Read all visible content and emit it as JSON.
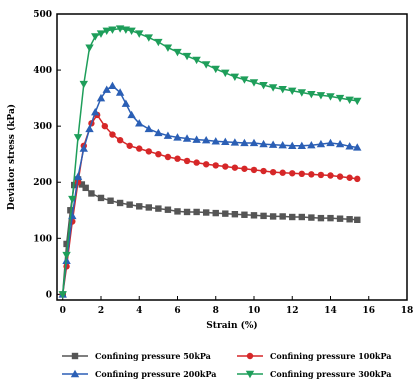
{
  "chart_data": {
    "type": "line",
    "xlabel": "Strain (%)",
    "ylabel": "Deviator stress (kPa)",
    "xlim": [
      -0.3,
      18
    ],
    "ylim": [
      -10,
      500
    ],
    "xticks": [
      "0",
      "2",
      "4",
      "6",
      "8",
      "10",
      "12",
      "14",
      "16",
      "18"
    ],
    "yticks": [
      "0",
      "100",
      "200",
      "300",
      "400",
      "500"
    ],
    "legend_position": "bottom",
    "grid": false,
    "series": [
      {
        "name": "Confining pressure 50kPa",
        "color": "#555555",
        "marker": "square",
        "x": [
          0,
          0.2,
          0.4,
          0.6,
          0.8,
          1.0,
          1.2,
          1.5,
          2.0,
          2.5,
          3.0,
          3.5,
          4.0,
          4.5,
          5.0,
          5.5,
          6.0,
          6.5,
          7.0,
          7.5,
          8.0,
          8.5,
          9.0,
          9.5,
          10.0,
          10.5,
          11.0,
          11.5,
          12.0,
          12.5,
          13.0,
          13.5,
          14.0,
          14.5,
          15.0,
          15.4
        ],
        "y": [
          0,
          90,
          150,
          195,
          205,
          196,
          190,
          180,
          172,
          167,
          163,
          160,
          157,
          155,
          153,
          151,
          148,
          147,
          147,
          146,
          145,
          144,
          143,
          142,
          141,
          140,
          139,
          139,
          138,
          138,
          137,
          136,
          136,
          135,
          134,
          133
        ]
      },
      {
        "name": "Confining pressure 100kPa",
        "color": "#d62728",
        "marker": "circle",
        "x": [
          0,
          0.2,
          0.5,
          0.8,
          1.1,
          1.5,
          1.8,
          2.2,
          2.6,
          3.0,
          3.5,
          4.0,
          4.5,
          5.0,
          5.5,
          6.0,
          6.5,
          7.0,
          7.5,
          8.0,
          8.5,
          9.0,
          9.5,
          10.0,
          10.5,
          11.0,
          11.5,
          12.0,
          12.5,
          13.0,
          13.5,
          14.0,
          14.5,
          15.0,
          15.4
        ],
        "y": [
          0,
          50,
          130,
          200,
          265,
          305,
          320,
          300,
          285,
          275,
          265,
          260,
          255,
          250,
          245,
          242,
          238,
          235,
          232,
          230,
          228,
          226,
          224,
          222,
          220,
          218,
          217,
          216,
          215,
          214,
          213,
          212,
          210,
          208,
          206
        ]
      },
      {
        "name": "Confining pressure 200kPa",
        "color": "#2b5fb5",
        "marker": "triangle",
        "x": [
          0,
          0.2,
          0.5,
          0.8,
          1.1,
          1.4,
          1.7,
          2.0,
          2.3,
          2.6,
          3.0,
          3.3,
          3.6,
          4.0,
          4.5,
          5.0,
          5.5,
          6.0,
          6.5,
          7.0,
          7.5,
          8.0,
          8.5,
          9.0,
          9.5,
          10.0,
          10.5,
          11.0,
          11.5,
          12.0,
          12.5,
          13.0,
          13.5,
          14.0,
          14.5,
          15.0,
          15.4
        ],
        "y": [
          0,
          60,
          140,
          210,
          260,
          295,
          325,
          350,
          365,
          372,
          360,
          340,
          320,
          305,
          295,
          288,
          283,
          280,
          278,
          276,
          275,
          273,
          272,
          271,
          270,
          270,
          268,
          267,
          266,
          265,
          265,
          266,
          268,
          270,
          268,
          264,
          262
        ]
      },
      {
        "name": "Confining pressure 300kPa",
        "color": "#1e9e5a",
        "marker": "triangle-down",
        "x": [
          0,
          0.2,
          0.5,
          0.8,
          1.1,
          1.4,
          1.7,
          2.0,
          2.3,
          2.6,
          3.0,
          3.3,
          3.6,
          4.0,
          4.5,
          5.0,
          5.5,
          6.0,
          6.5,
          7.0,
          7.5,
          8.0,
          8.5,
          9.0,
          9.5,
          10.0,
          10.5,
          11.0,
          11.5,
          12.0,
          12.5,
          13.0,
          13.5,
          14.0,
          14.5,
          15.0,
          15.4
        ],
        "y": [
          0,
          70,
          170,
          280,
          375,
          440,
          460,
          465,
          470,
          472,
          474,
          472,
          470,
          465,
          458,
          450,
          440,
          432,
          425,
          418,
          410,
          402,
          395,
          388,
          383,
          378,
          373,
          369,
          366,
          363,
          360,
          357,
          355,
          353,
          350,
          347,
          345
        ]
      }
    ]
  }
}
